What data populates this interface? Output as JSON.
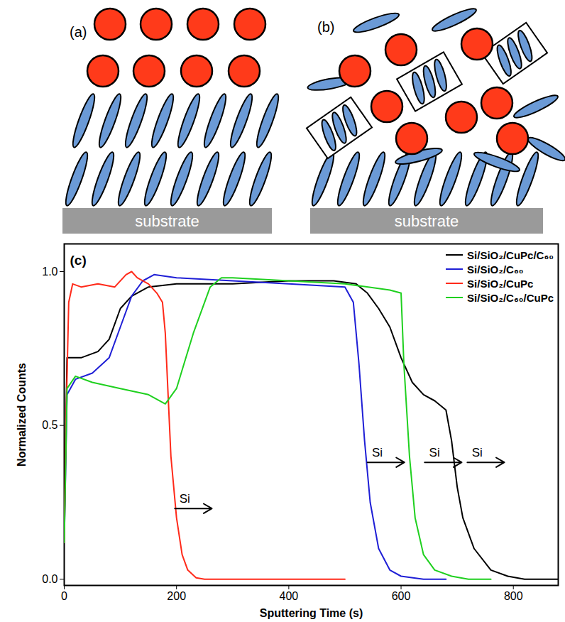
{
  "diagram": {
    "panels": [
      {
        "label": "(a)",
        "substrate": "substrate"
      },
      {
        "label": "(b)",
        "substrate": "substrate"
      }
    ]
  },
  "chart_data": {
    "type": "line",
    "panel_label": "(c)",
    "x_label": "Sputtering Time (s)",
    "y_label": "Normalized Counts",
    "xlim": [
      0,
      880
    ],
    "xticks": [
      0,
      200,
      400,
      600,
      800
    ],
    "ylim": [
      -0.02,
      1.09
    ],
    "yticks": [
      {
        "value": 0,
        "label": "0.0"
      },
      {
        "value": 0.5,
        "label": "0.5"
      },
      {
        "value": 1,
        "label": "1.0"
      }
    ],
    "grid": false,
    "legend": "top-right",
    "series": [
      {
        "name": "Si/SiO₂/CuPc/C₆₀",
        "color": "#000000",
        "x": [
          0,
          5,
          30,
          60,
          80,
          100,
          120,
          150,
          200,
          300,
          400,
          480,
          520,
          540,
          560,
          580,
          600,
          620,
          640,
          660,
          680,
          690,
          700,
          710,
          730,
          760,
          790,
          820,
          880
        ],
        "values": [
          0.15,
          0.72,
          0.72,
          0.74,
          0.78,
          0.88,
          0.92,
          0.95,
          0.96,
          0.96,
          0.97,
          0.97,
          0.96,
          0.93,
          0.88,
          0.82,
          0.72,
          0.64,
          0.6,
          0.58,
          0.55,
          0.45,
          0.3,
          0.2,
          0.1,
          0.03,
          0.01,
          0,
          0
        ]
      },
      {
        "name": "Si/SiO₂/C₆₀",
        "color": "#1f1fd6",
        "x": [
          0,
          5,
          20,
          50,
          80,
          100,
          120,
          140,
          160,
          200,
          300,
          400,
          500,
          515,
          525,
          535,
          545,
          560,
          580,
          600,
          640,
          680
        ],
        "values": [
          0.12,
          0.6,
          0.65,
          0.67,
          0.72,
          0.82,
          0.92,
          0.97,
          0.99,
          0.98,
          0.97,
          0.96,
          0.95,
          0.9,
          0.7,
          0.45,
          0.25,
          0.1,
          0.03,
          0.01,
          0,
          0
        ]
      },
      {
        "name": "Si/SiO₂/CuPc",
        "color": "#ff2a1a",
        "x": [
          0,
          3,
          8,
          15,
          30,
          60,
          90,
          110,
          120,
          130,
          150,
          165,
          175,
          180,
          185,
          190,
          200,
          210,
          220,
          235,
          250,
          500
        ],
        "values": [
          0.12,
          0.5,
          0.9,
          0.96,
          0.95,
          0.96,
          0.95,
          0.99,
          1.0,
          0.98,
          0.96,
          0.93,
          0.9,
          0.8,
          0.6,
          0.4,
          0.2,
          0.08,
          0.03,
          0.005,
          0,
          0
        ]
      },
      {
        "name": "Si/SiO₂/C₆₀/CuPc",
        "color": "#1fd01f",
        "x": [
          0,
          5,
          20,
          50,
          100,
          150,
          180,
          200,
          230,
          260,
          280,
          300,
          400,
          500,
          580,
          600,
          605,
          615,
          625,
          640,
          660,
          690,
          720,
          760
        ],
        "values": [
          0.12,
          0.62,
          0.66,
          0.64,
          0.62,
          0.6,
          0.57,
          0.62,
          0.8,
          0.95,
          0.98,
          0.98,
          0.97,
          0.96,
          0.94,
          0.93,
          0.7,
          0.4,
          0.2,
          0.08,
          0.03,
          0.01,
          0,
          0
        ]
      }
    ],
    "annotations": [
      {
        "text": "Si",
        "x": 205,
        "y": 0.23
      },
      {
        "text": "Si",
        "x": 548,
        "y": 0.38
      },
      {
        "text": "Si",
        "x": 650,
        "y": 0.38
      },
      {
        "text": "Si",
        "x": 726,
        "y": 0.38
      }
    ]
  }
}
